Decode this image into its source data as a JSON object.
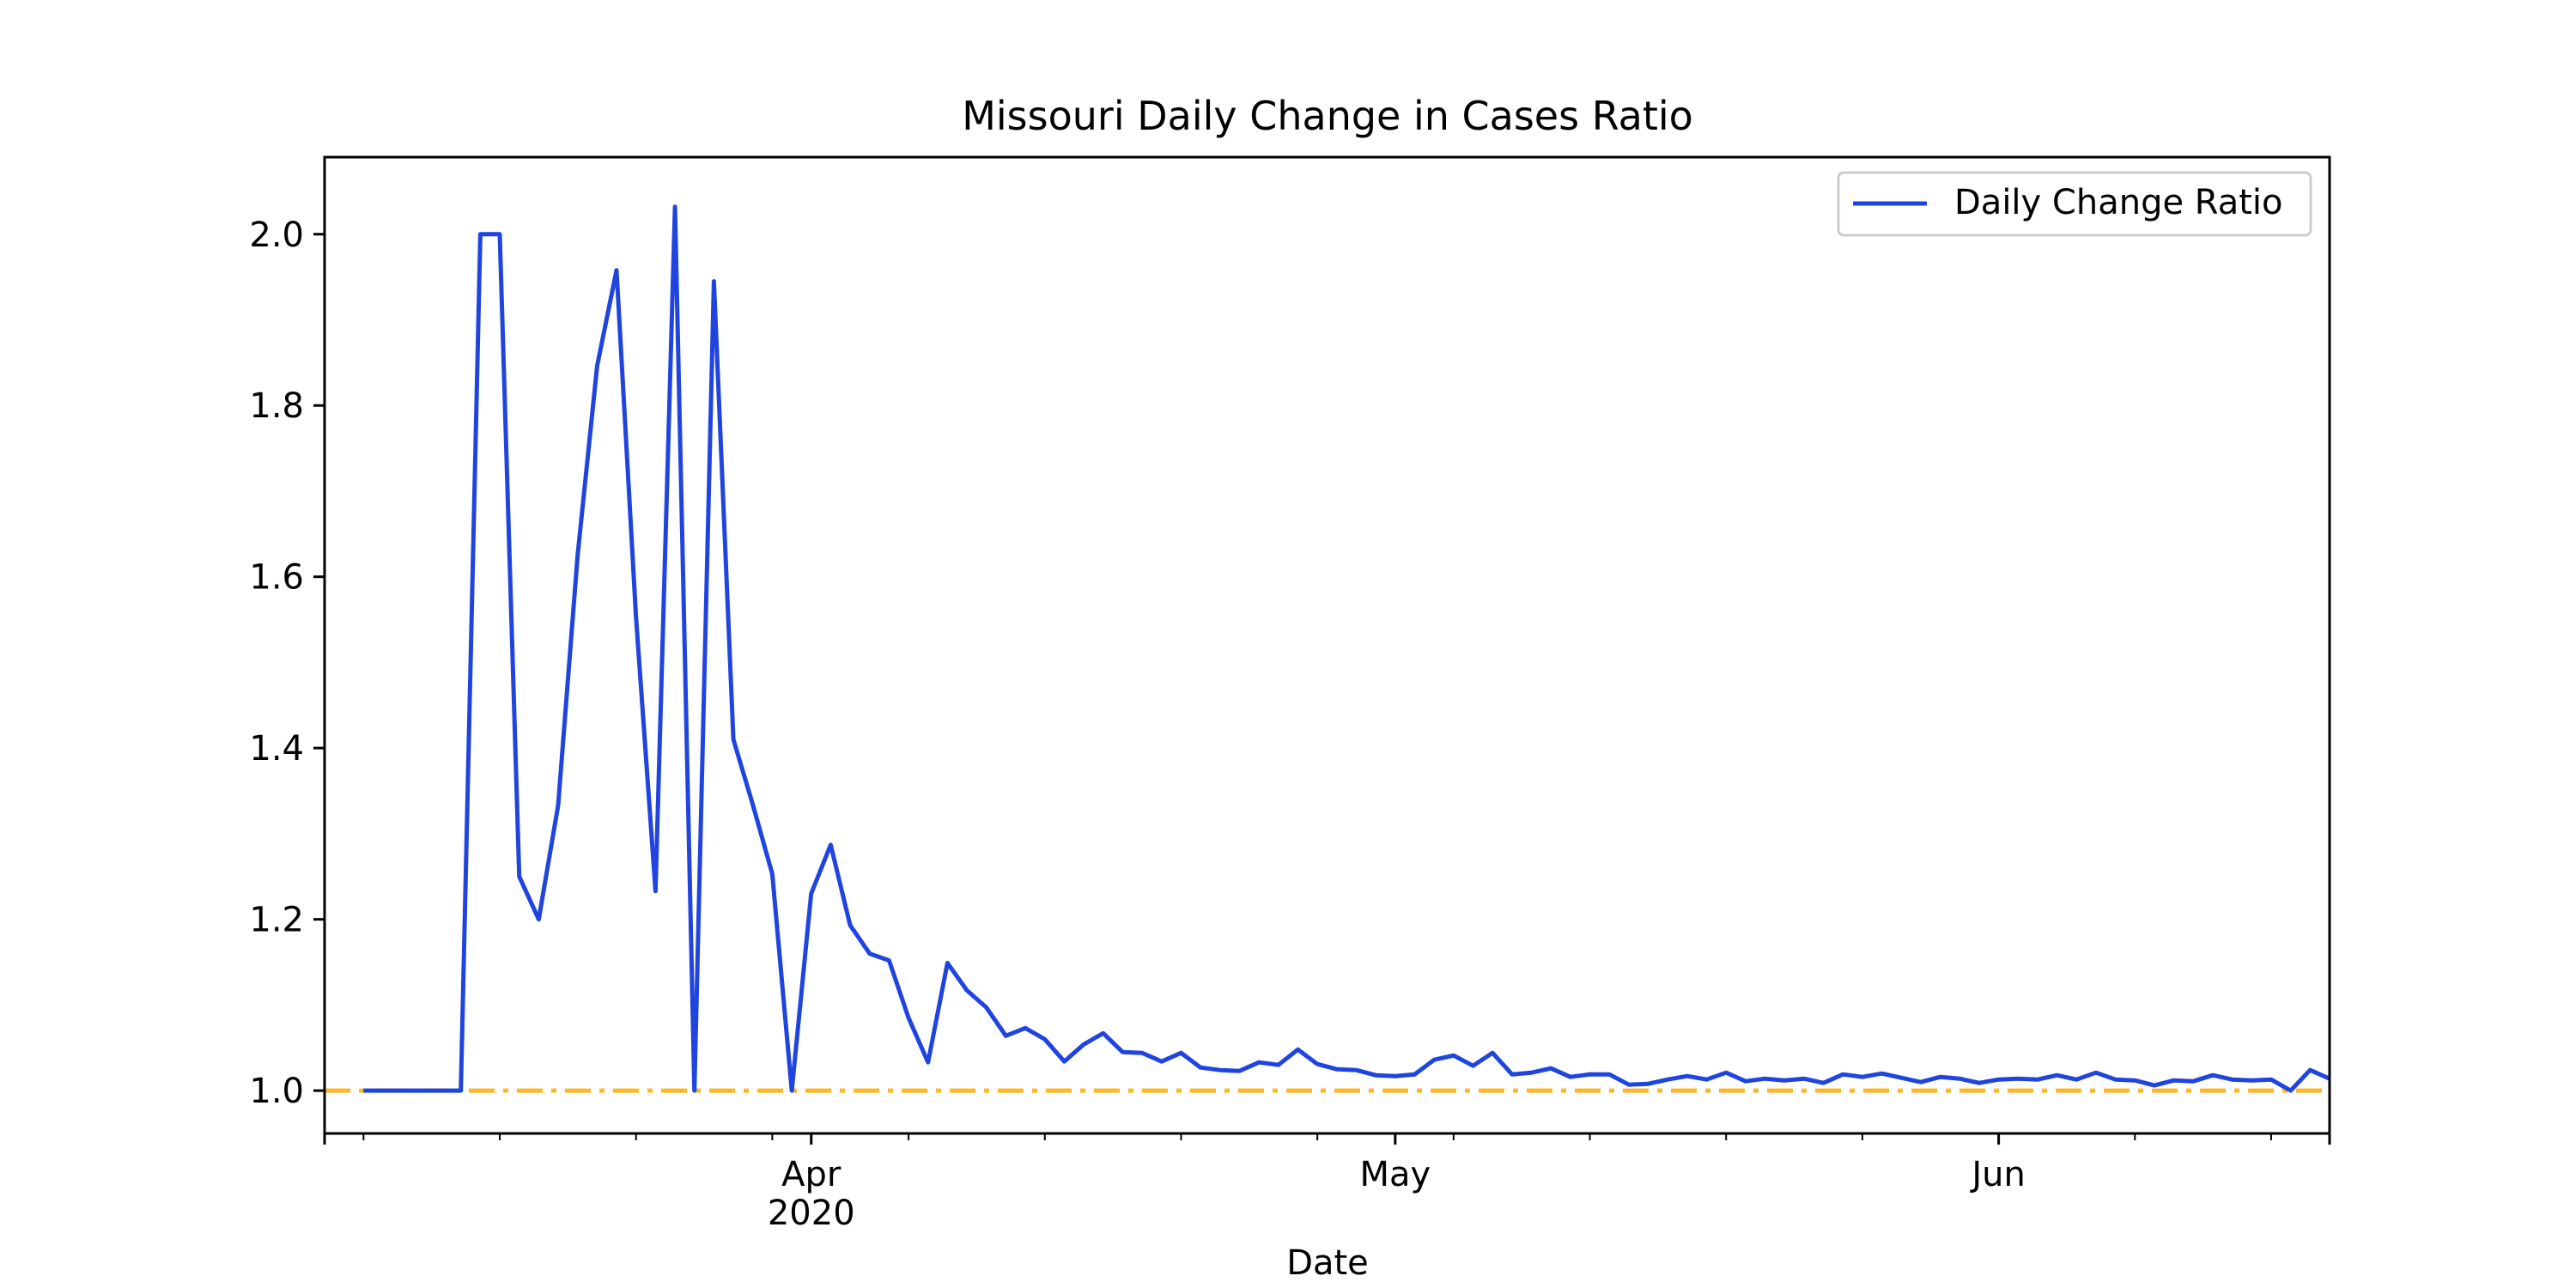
{
  "chart_data": {
    "type": "line",
    "title": "Missouri Daily Change in Cases Ratio",
    "xlabel": "Date",
    "ylabel": "",
    "x_start": "2020-03-07",
    "xlim": [
      "2020-03-07",
      "2020-06-18"
    ],
    "ylim": [
      0.95,
      2.09
    ],
    "y_ticks": [
      1.0,
      1.2,
      1.4,
      1.6,
      1.8,
      2.0
    ],
    "y_tick_labels": [
      "1.0",
      "1.2",
      "1.4",
      "1.6",
      "1.8",
      "2.0"
    ],
    "x_major_ticks": [
      {
        "date": "2020-04-01",
        "label": "Apr",
        "sublabel": "2020"
      },
      {
        "date": "2020-05-01",
        "label": "May",
        "sublabel": ""
      },
      {
        "date": "2020-06-01",
        "label": "Jun",
        "sublabel": ""
      }
    ],
    "x_minor_ticks": [
      "2020-03-09",
      "2020-03-16",
      "2020-03-23",
      "2020-03-30",
      "2020-04-06",
      "2020-04-13",
      "2020-04-20",
      "2020-04-27",
      "2020-05-04",
      "2020-05-11",
      "2020-05-18",
      "2020-05-25",
      "2020-06-08",
      "2020-06-15"
    ],
    "grid": false,
    "legend": {
      "position": "top-right"
    },
    "series": [
      {
        "name": "Daily Change Ratio",
        "color": "#1f44e0",
        "style": "solid",
        "x": [
          "2020-03-09",
          "2020-03-10",
          "2020-03-11",
          "2020-03-12",
          "2020-03-13",
          "2020-03-14",
          "2020-03-15",
          "2020-03-16",
          "2020-03-17",
          "2020-03-18",
          "2020-03-19",
          "2020-03-20",
          "2020-03-21",
          "2020-03-22",
          "2020-03-23",
          "2020-03-24",
          "2020-03-25",
          "2020-03-26",
          "2020-03-27",
          "2020-03-28",
          "2020-03-29",
          "2020-03-30",
          "2020-03-31",
          "2020-04-01",
          "2020-04-02",
          "2020-04-03",
          "2020-04-04",
          "2020-04-05",
          "2020-04-06",
          "2020-04-07",
          "2020-04-08",
          "2020-04-09",
          "2020-04-10",
          "2020-04-11",
          "2020-04-12",
          "2020-04-13",
          "2020-04-14",
          "2020-04-15",
          "2020-04-16",
          "2020-04-17",
          "2020-04-18",
          "2020-04-19",
          "2020-04-20",
          "2020-04-21",
          "2020-04-22",
          "2020-04-23",
          "2020-04-24",
          "2020-04-25",
          "2020-04-26",
          "2020-04-27",
          "2020-04-28",
          "2020-04-29",
          "2020-04-30",
          "2020-05-01",
          "2020-05-02",
          "2020-05-03",
          "2020-05-04",
          "2020-05-05",
          "2020-05-06",
          "2020-05-07",
          "2020-05-08",
          "2020-05-09",
          "2020-05-10",
          "2020-05-11",
          "2020-05-12",
          "2020-05-13",
          "2020-05-14",
          "2020-05-15",
          "2020-05-16",
          "2020-05-17",
          "2020-05-18",
          "2020-05-19",
          "2020-05-20",
          "2020-05-21",
          "2020-05-22",
          "2020-05-23",
          "2020-05-24",
          "2020-05-25",
          "2020-05-26",
          "2020-05-27",
          "2020-05-28",
          "2020-05-29",
          "2020-05-30",
          "2020-05-31",
          "2020-06-01",
          "2020-06-02",
          "2020-06-03",
          "2020-06-04",
          "2020-06-05",
          "2020-06-06",
          "2020-06-07",
          "2020-06-08",
          "2020-06-09",
          "2020-06-10",
          "2020-06-11",
          "2020-06-12",
          "2020-06-13",
          "2020-06-14",
          "2020-06-15",
          "2020-06-16",
          "2020-06-17",
          "2020-06-18"
        ],
        "values": [
          1.0,
          1.0,
          1.0,
          1.0,
          1.0,
          1.0,
          2.0,
          2.0,
          1.25,
          1.2,
          1.333,
          1.625,
          1.846,
          1.958,
          1.553,
          1.233,
          2.032,
          1.0,
          1.945,
          1.41,
          1.334,
          1.253,
          1.0,
          1.23,
          1.287,
          1.193,
          1.16,
          1.152,
          1.085,
          1.033,
          1.149,
          1.117,
          1.097,
          1.064,
          1.073,
          1.06,
          1.034,
          1.054,
          1.067,
          1.045,
          1.044,
          1.034,
          1.044,
          1.027,
          1.024,
          1.023,
          1.033,
          1.03,
          1.048,
          1.031,
          1.025,
          1.024,
          1.018,
          1.017,
          1.019,
          1.036,
          1.041,
          1.029,
          1.044,
          1.019,
          1.021,
          1.026,
          1.016,
          1.019,
          1.019,
          1.007,
          1.008,
          1.013,
          1.017,
          1.013,
          1.021,
          1.011,
          1.014,
          1.012,
          1.014,
          1.009,
          1.019,
          1.016,
          1.02,
          1.015,
          1.01,
          1.016,
          1.014,
          1.009,
          1.013,
          1.014,
          1.013,
          1.018,
          1.013,
          1.021,
          1.013,
          1.012,
          1.006,
          1.012,
          1.011,
          1.018,
          1.013,
          1.012,
          1.013,
          1.0,
          1.024,
          1.014
        ]
      },
      {
        "name": "",
        "color": "#ffb627",
        "style": "dashdot",
        "x": [
          "2020-03-07",
          "2020-06-18"
        ],
        "values": [
          1.0,
          1.0
        ]
      }
    ]
  }
}
